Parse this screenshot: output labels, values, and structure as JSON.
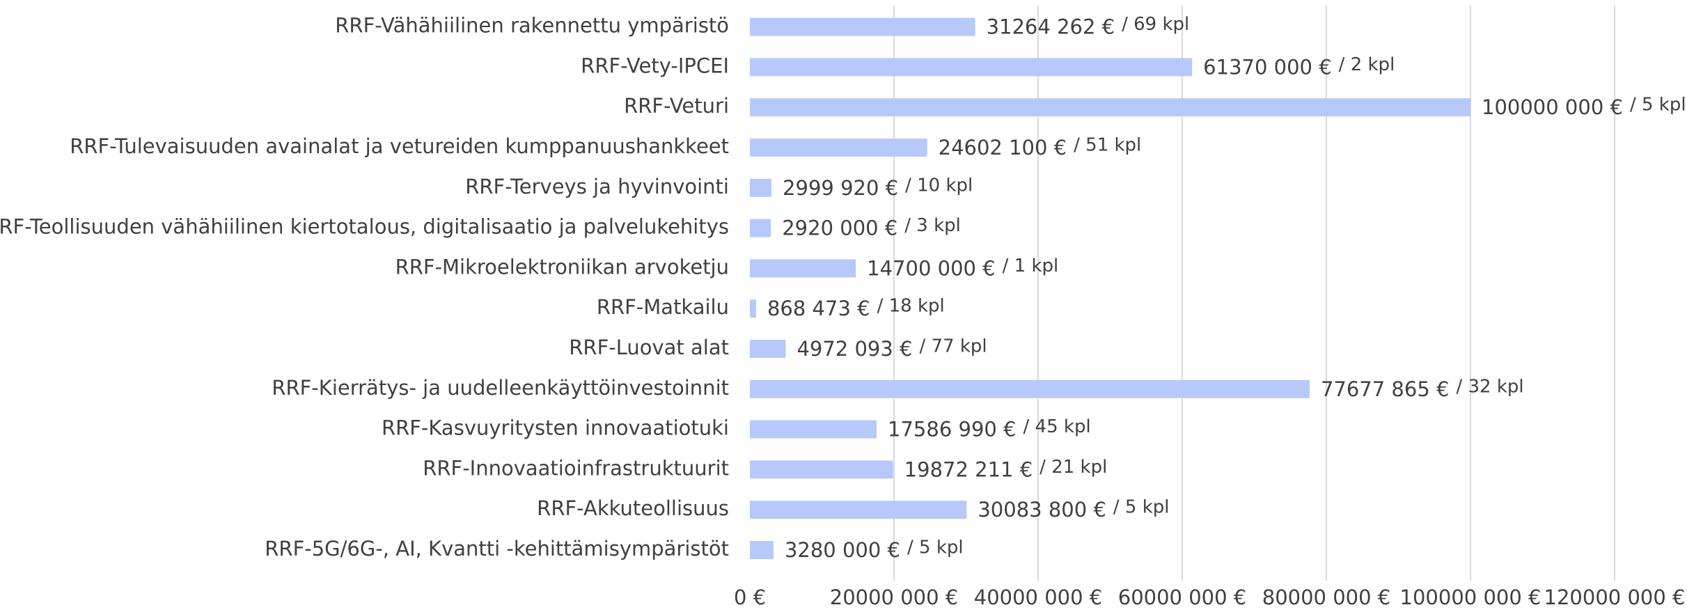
{
  "chart_data": {
    "type": "bar",
    "orientation": "horizontal",
    "color": "#b7c8fb",
    "grid": true,
    "categories": [
      "RRF-Vähähiilinen rakennettu ympäristö",
      "RRF-Vety-IPCEI",
      "RRF-Veturi",
      "RRF-Tulevaisuuden avainalat ja vetureiden kumppanuushankkeet",
      "RRF-Terveys ja hyvinvointi",
      "RRF-Teollisuuden vähähiilinen kiertotalous, digitalisaatio ja palvelukehitys",
      "RRF-Mikroelektroniikan arvoketju",
      "RRF-Matkailu",
      "RRF-Luovat alat",
      "RRF-Kierrätys- ja uudelleenkäyttöinvestoinnit",
      "RRF-Kasvuyritysten innovaatiotuki",
      "RRF-Innovaatioinfrastruktuurit",
      "RRF-Akkuteollisuus",
      "RRF-5G/6G-, AI, Kvantti -kehittämisympäristöt"
    ],
    "values": [
      31264262,
      61370000,
      100000000,
      24602100,
      2999920,
      2920000,
      14700000,
      868473,
      4972093,
      77677865,
      17586990,
      19872211,
      30083800,
      3280000
    ],
    "value_labels": [
      "31264 262 €",
      "61370 000 €",
      "100000 000 €",
      "24602 100 €",
      "2999 920 €",
      "2920 000 €",
      "14700 000 €",
      "868 473 €",
      "4972 093 €",
      "77677 865 €",
      "17586 990 €",
      "19872 211 €",
      "30083 800 €",
      "3280 000 €"
    ],
    "count_labels": [
      "/ 69 kpl",
      "/ 2 kpl",
      "/ 5 kpl",
      "/ 51 kpl",
      "/ 10 kpl",
      "/ 3 kpl",
      "/ 1 kpl",
      "/ 18 kpl",
      "/ 77 kpl",
      "/ 32 kpl",
      "/ 45 kpl",
      "/ 21 kpl",
      "/ 5 kpl",
      "/ 5 kpl"
    ],
    "xlim": [
      0,
      120000000
    ],
    "xticks": [
      {
        "value": 0,
        "label": "0 €"
      },
      {
        "value": 20000000,
        "label": "20000 000 €"
      },
      {
        "value": 40000000,
        "label": "40000 000 €"
      },
      {
        "value": 60000000,
        "label": "60000 000 €"
      },
      {
        "value": 80000000,
        "label": "80000 000 €"
      },
      {
        "value": 100000000,
        "label": "100000 000 €"
      },
      {
        "value": 120000000,
        "label": "120000 000 €"
      }
    ]
  }
}
